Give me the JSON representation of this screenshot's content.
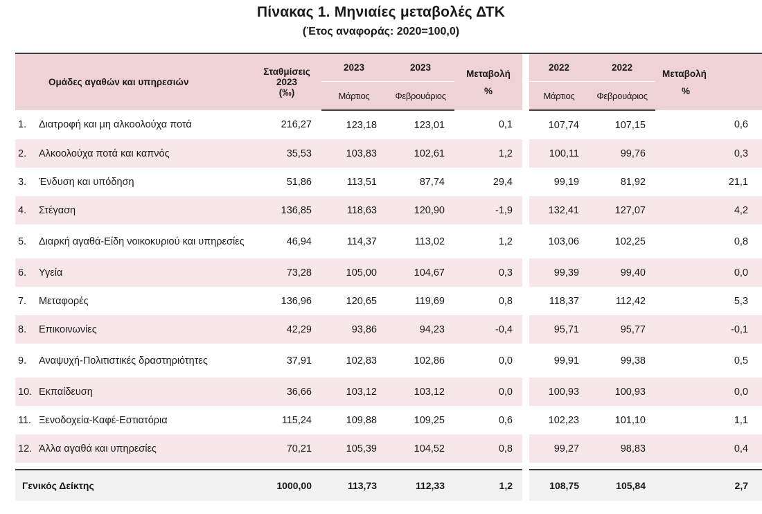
{
  "title": "Πίνακας 1. Μηνιαίες μεταβολές ΔΤΚ",
  "subtitle": "(Έτος αναφοράς: 2020=100,0)",
  "header": {
    "category": "Ομάδες αγαθών και υπηρεσιών",
    "weights_line1": "Σταθμίσεις",
    "weights_line2": "2023",
    "weights_line3": "(‰)",
    "year_a1": "2023",
    "year_a2": "2023",
    "change_a_line1": "Μεταβολή",
    "change_a_line2": "%",
    "year_b1": "2022",
    "year_b2": "2022",
    "change_b_line1": "Μεταβολή",
    "change_b_line2": "%",
    "month_a1": "Μάρτιος",
    "month_a2": "Φεβρουάριος",
    "month_b1": "Μάρτιος",
    "month_b2": "Φεβρουάριος"
  },
  "rows": [
    {
      "idx": "1.",
      "name": "Διατροφή και μη αλκοολούχα ποτά",
      "weight": "216,27",
      "a_mar": "123,18",
      "a_feb": "123,01",
      "a_chg": "0,1",
      "b_mar": "107,74",
      "b_feb": "107,15",
      "b_chg": "0,6"
    },
    {
      "idx": "2.",
      "name": "Αλκοολούχα ποτά και καπνός",
      "weight": "35,53",
      "a_mar": "103,83",
      "a_feb": "102,61",
      "a_chg": "1,2",
      "b_mar": "100,11",
      "b_feb": "99,76",
      "b_chg": "0,3"
    },
    {
      "idx": "3.",
      "name": "Ένδυση και υπόδηση",
      "weight": "51,86",
      "a_mar": "113,51",
      "a_feb": "87,74",
      "a_chg": "29,4",
      "b_mar": "99,19",
      "b_feb": "81,92",
      "b_chg": "21,1"
    },
    {
      "idx": "4.",
      "name": "Στέγαση",
      "weight": "136,85",
      "a_mar": "118,63",
      "a_feb": "120,90",
      "a_chg": "-1,9",
      "b_mar": "132,41",
      "b_feb": "127,07",
      "b_chg": "4,2"
    },
    {
      "idx": "5.",
      "name": "Διαρκή αγαθά-Είδη νοικοκυριού και υπηρεσίες",
      "weight": "46,94",
      "a_mar": "114,37",
      "a_feb": "113,02",
      "a_chg": "1,2",
      "b_mar": "103,06",
      "b_feb": "102,25",
      "b_chg": "0,8"
    },
    {
      "idx": "6.",
      "name": "Υγεία",
      "weight": "73,28",
      "a_mar": "105,00",
      "a_feb": "104,67",
      "a_chg": "0,3",
      "b_mar": "99,39",
      "b_feb": "99,40",
      "b_chg": "0,0"
    },
    {
      "idx": "7.",
      "name": "Μεταφορές",
      "weight": "136,96",
      "a_mar": "120,65",
      "a_feb": "119,69",
      "a_chg": "0,8",
      "b_mar": "118,37",
      "b_feb": "112,42",
      "b_chg": "5,3"
    },
    {
      "idx": "8.",
      "name": "Επικοινωνίες",
      "weight": "42,29",
      "a_mar": "93,86",
      "a_feb": "94,23",
      "a_chg": "-0,4",
      "b_mar": "95,71",
      "b_feb": "95,77",
      "b_chg": "-0,1"
    },
    {
      "idx": "9.",
      "name": "Αναψυχή-Πολιτιστικές δραστηριότητες",
      "weight": "37,91",
      "a_mar": "102,83",
      "a_feb": "102,86",
      "a_chg": "0,0",
      "b_mar": "99,91",
      "b_feb": "99,38",
      "b_chg": "0,5"
    },
    {
      "idx": "10.",
      "name": "Εκπαίδευση",
      "weight": "36,66",
      "a_mar": "103,12",
      "a_feb": "103,12",
      "a_chg": "0,0",
      "b_mar": "100,93",
      "b_feb": "100,93",
      "b_chg": "0,0"
    },
    {
      "idx": "11.",
      "name": "Ξενοδοχεία-Καφέ-Εστιατόρια",
      "weight": "115,24",
      "a_mar": "109,88",
      "a_feb": "109,25",
      "a_chg": "0,6",
      "b_mar": "102,23",
      "b_feb": "101,10",
      "b_chg": "1,1"
    },
    {
      "idx": "12.",
      "name": "Άλλα αγαθά και υπηρεσίες",
      "weight": "70,21",
      "a_mar": "105,39",
      "a_feb": "104,52",
      "a_chg": "0,8",
      "b_mar": "99,27",
      "b_feb": "98,83",
      "b_chg": "0,4"
    }
  ],
  "total": {
    "name": "Γενικός Δείκτης",
    "weight": "1000,00",
    "a_mar": "113,73",
    "a_feb": "112,33",
    "a_chg": "1,2",
    "b_mar": "108,75",
    "b_feb": "105,84",
    "b_chg": "2,7"
  },
  "colors": {
    "header_bg": "#eed2d6",
    "stripe_bg": "#f8e7ea",
    "total_bg": "#f1f1f1"
  }
}
